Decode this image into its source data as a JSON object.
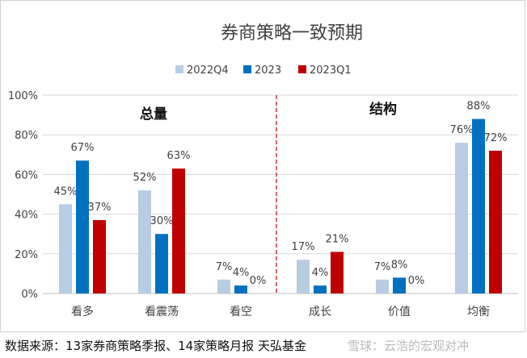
{
  "chart_data": {
    "type": "bar",
    "title": "券商策略一致预期",
    "categories": [
      "看多",
      "看震荡",
      "看空",
      "成长",
      "价值",
      "均衡"
    ],
    "series": [
      {
        "name": "2022Q4",
        "color": "#b8cce4",
        "values": [
          45,
          52,
          7,
          17,
          7,
          76
        ],
        "labels": [
          "45%",
          "52%",
          "7%",
          "17%",
          "7%",
          "76%"
        ]
      },
      {
        "name": "2023",
        "color": "#0070c0",
        "values": [
          67,
          30,
          4,
          4,
          8,
          88
        ],
        "labels": [
          "67%",
          "30%",
          "4%",
          "4%",
          "8%",
          "88%"
        ]
      },
      {
        "name": "2023Q1",
        "color": "#c00000",
        "values": [
          37,
          63,
          0,
          21,
          0,
          72
        ],
        "labels": [
          "37%",
          "63%",
          "0%",
          "21%",
          "0%",
          "72%"
        ]
      }
    ],
    "ylim": [
      0,
      100
    ],
    "yticks": [
      "0%",
      "20%",
      "40%",
      "60%",
      "80%",
      "100%"
    ],
    "ytick_values": [
      0,
      20,
      40,
      60,
      80,
      100
    ],
    "grid": true,
    "legend_position": "top",
    "group_labels": [
      "总量",
      "结构"
    ],
    "divider_color": "#c00000"
  },
  "source_note": "数据来源：13家券商策略季报、14家策略月报 天弘基金",
  "watermark": "雪球：云浩的宏观对冲"
}
